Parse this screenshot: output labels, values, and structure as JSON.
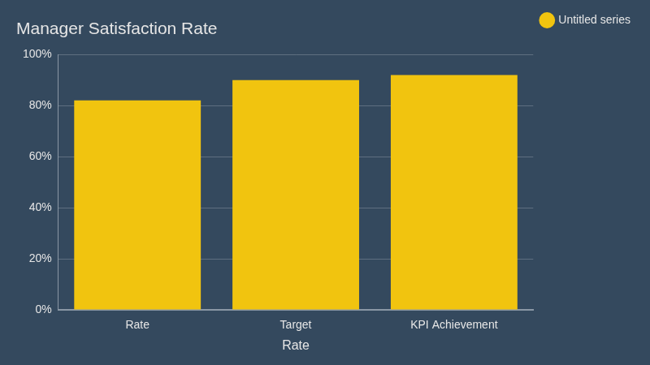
{
  "chart_data": {
    "type": "bar",
    "title": "Manager Satisfaction Rate",
    "x_label": "Rate",
    "categories": [
      "Rate",
      "Target",
      "KPI Achievement"
    ],
    "series": [
      {
        "name": "Untitled series",
        "color": "#f1c40f",
        "values": [
          82,
          90,
          92
        ]
      }
    ],
    "ylim": [
      0,
      100
    ],
    "yticks": [
      {
        "value": 0,
        "label": "0%"
      },
      {
        "value": 20,
        "label": "20%"
      },
      {
        "value": 40,
        "label": "40%"
      },
      {
        "value": 60,
        "label": "60%"
      },
      {
        "value": 80,
        "label": "80%"
      },
      {
        "value": 100,
        "label": "100%"
      }
    ],
    "grid": true,
    "legend": "top-right"
  }
}
